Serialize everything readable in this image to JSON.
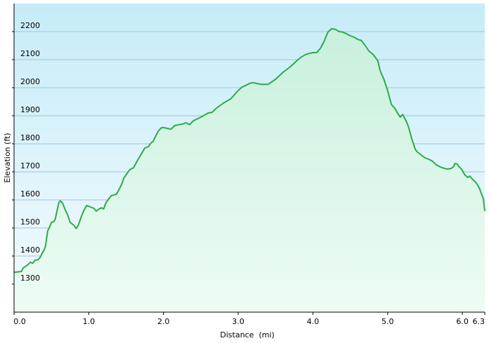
{
  "chart_data": {
    "type": "area",
    "title": "",
    "xlabel": "Distance  (mi)",
    "ylabel": "Elevation (ft)",
    "xlim": [
      0,
      6.3
    ],
    "ylim": [
      1200,
      2300
    ],
    "x_ticks": [
      {
        "value": 0,
        "label": "0.0"
      },
      {
        "value": 1,
        "label": "1.0"
      },
      {
        "value": 2,
        "label": "2.0"
      },
      {
        "value": 3,
        "label": "3.0"
      },
      {
        "value": 4,
        "label": "4.0"
      },
      {
        "value": 5,
        "label": "5.0"
      },
      {
        "value": 6,
        "label": "6.0"
      },
      {
        "value": 6.3,
        "label": "6.3"
      }
    ],
    "y_ticks": [
      {
        "value": 1300,
        "label": "1300"
      },
      {
        "value": 1400,
        "label": "1400"
      },
      {
        "value": 1500,
        "label": "1500"
      },
      {
        "value": 1600,
        "label": "1600"
      },
      {
        "value": 1700,
        "label": "1700"
      },
      {
        "value": 1800,
        "label": "1800"
      },
      {
        "value": 1900,
        "label": "1900"
      },
      {
        "value": 2000,
        "label": "2000"
      },
      {
        "value": 2100,
        "label": "2100"
      },
      {
        "value": 2200,
        "label": "2200"
      }
    ],
    "grid": true,
    "colors": {
      "line": "#2daa4a",
      "fill_top": "#c8f0dc",
      "fill_bottom": "#eefcf4",
      "bg_top": "#c6ecf8",
      "bg_bottom": "#f4fbfe",
      "grid": "#9cc6d6",
      "axis": "#000000"
    },
    "series": [
      {
        "x": [
          0,
          0.1,
          0.12,
          0.18,
          0.22,
          0.25,
          0.28,
          0.32,
          0.35,
          0.38,
          0.4,
          0.42,
          0.45,
          0.47,
          0.5,
          0.53,
          0.55,
          0.57,
          0.6,
          0.62,
          0.65,
          0.68,
          0.72,
          0.75,
          0.8,
          0.83,
          0.86,
          0.88,
          0.9,
          0.93,
          0.97,
          1.02,
          1.07,
          1.1,
          1.14,
          1.17,
          1.2,
          1.23,
          1.27,
          1.3,
          1.33,
          1.37,
          1.4,
          1.44,
          1.47,
          1.5,
          1.55,
          1.6,
          1.65,
          1.7,
          1.75,
          1.8,
          1.83,
          1.86,
          1.9,
          1.93,
          1.97,
          2.0,
          2.05,
          2.1,
          2.15,
          2.2,
          2.25,
          2.3,
          2.35,
          2.4,
          2.5,
          2.6,
          2.65,
          2.7,
          2.8,
          2.9,
          3.0,
          3.05,
          3.1,
          3.15,
          3.2,
          3.25,
          3.3,
          3.35,
          3.4,
          3.5,
          3.6,
          3.7,
          3.8,
          3.85,
          3.9,
          3.95,
          4.0,
          4.05,
          4.1,
          4.15,
          4.2,
          4.25,
          4.3,
          4.35,
          4.4,
          4.45,
          4.5,
          4.55,
          4.6,
          4.65,
          4.7,
          4.75,
          4.8,
          4.83,
          4.87,
          4.9,
          4.95,
          5.0,
          5.05,
          5.1,
          5.13,
          5.17,
          5.2,
          5.25,
          5.28,
          5.32,
          5.37,
          5.4,
          5.45,
          5.5,
          5.55,
          5.6,
          5.65,
          5.7,
          5.75,
          5.8,
          5.85,
          5.88,
          5.9,
          5.93,
          5.95,
          5.98,
          6.0,
          6.03,
          6.07,
          6.1,
          6.13,
          6.17,
          6.2,
          6.23,
          6.25,
          6.28,
          6.3
        ],
        "y": [
          1342,
          1345,
          1357,
          1368,
          1378,
          1374,
          1385,
          1387,
          1395,
          1412,
          1420,
          1435,
          1490,
          1500,
          1520,
          1522,
          1530,
          1555,
          1590,
          1597,
          1588,
          1568,
          1545,
          1520,
          1510,
          1498,
          1510,
          1525,
          1540,
          1560,
          1580,
          1575,
          1570,
          1560,
          1568,
          1572,
          1568,
          1590,
          1605,
          1615,
          1617,
          1620,
          1635,
          1655,
          1678,
          1690,
          1708,
          1715,
          1740,
          1762,
          1785,
          1790,
          1802,
          1808,
          1830,
          1845,
          1857,
          1858,
          1855,
          1852,
          1865,
          1868,
          1870,
          1875,
          1868,
          1882,
          1895,
          1910,
          1912,
          1925,
          1945,
          1960,
          1990,
          2002,
          2008,
          2015,
          2018,
          2015,
          2012,
          2012,
          2012,
          2030,
          2055,
          2075,
          2100,
          2110,
          2118,
          2122,
          2125,
          2125,
          2140,
          2165,
          2198,
          2210,
          2208,
          2200,
          2198,
          2192,
          2185,
          2180,
          2172,
          2168,
          2150,
          2130,
          2120,
          2110,
          2095,
          2060,
          2030,
          1990,
          1940,
          1925,
          1910,
          1895,
          1905,
          1880,
          1860,
          1820,
          1780,
          1770,
          1760,
          1750,
          1745,
          1738,
          1725,
          1718,
          1713,
          1710,
          1712,
          1718,
          1730,
          1728,
          1720,
          1712,
          1705,
          1690,
          1680,
          1685,
          1675,
          1665,
          1655,
          1640,
          1625,
          1605,
          1560
        ]
      }
    ]
  }
}
